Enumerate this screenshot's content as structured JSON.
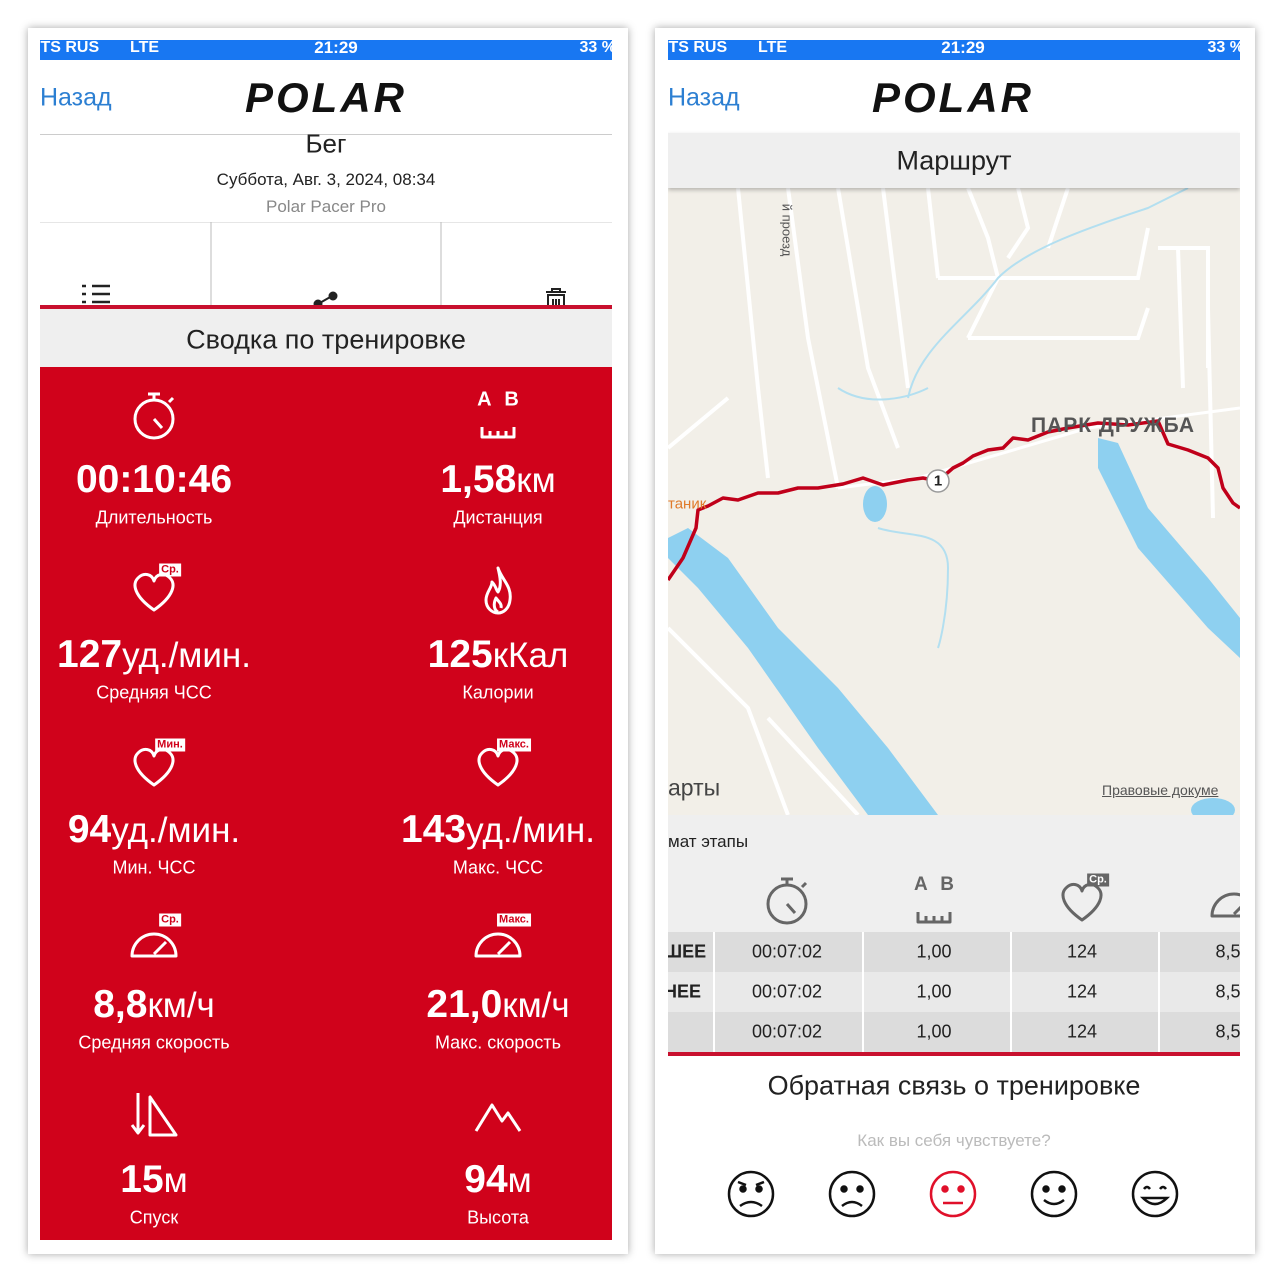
{
  "status": {
    "carrier": "ITS RUS",
    "network": "LTE",
    "time": "21:29",
    "battery": "33 %"
  },
  "nav": {
    "back": "Назад",
    "logo": "POLAR"
  },
  "workout": {
    "sport": "Бег",
    "date": "Суббота, Авг. 3, 2024, 08:34",
    "device": "Polar Pacer Pro"
  },
  "summary": {
    "title": "Сводка по тренировке",
    "metrics": [
      {
        "value": "00:10:46",
        "label": "Длительность"
      },
      {
        "icon_text": "A B",
        "value": "1,58",
        "unit": "км",
        "label": "Дистанция"
      },
      {
        "badge": "Ср.",
        "value": "127",
        "unit": "уд./мин.",
        "label": "Средняя ЧСС"
      },
      {
        "value": "125",
        "unit": "кКал",
        "label": "Калории"
      },
      {
        "badge": "Мин.",
        "value": "94",
        "unit": "уд./мин.",
        "label": "Мин. ЧСС"
      },
      {
        "badge": "Макс.",
        "value": "143",
        "unit": "уд./мин.",
        "label": "Макс. ЧСС"
      },
      {
        "badge": "Ср.",
        "value": "8,8",
        "unit": "км/ч",
        "label": "Средняя скорость"
      },
      {
        "badge": "Макс.",
        "value": "21,0",
        "unit": "км/ч",
        "label": "Макс. скорость"
      },
      {
        "value": "15",
        "unit": "м",
        "label": "Спуск"
      },
      {
        "value": "94",
        "unit": "м",
        "label": "Высота"
      }
    ]
  },
  "route": {
    "title": "Маршрут",
    "map_labels": {
      "park": "ПАРК ДРУЖБА",
      "street": "й проезд",
      "poi": "таник",
      "district": "арты",
      "legal": "Правовые докуме",
      "marker": "1"
    }
  },
  "laps": {
    "title": "мат этапы",
    "header": {
      "distance_icon": "A B",
      "hr_badge": "Ср."
    },
    "rows": [
      {
        "label": "ШЕЕ",
        "cells": [
          "00:07:02",
          "1,00",
          "124",
          "8,5"
        ]
      },
      {
        "label": "НЕЕ",
        "cells": [
          "00:07:02",
          "1,00",
          "124",
          "8,5"
        ]
      },
      {
        "cells": [
          "00:07:02",
          "1,00",
          "124",
          "8,5"
        ]
      }
    ]
  },
  "feedback": {
    "title": "Обратная связь о тренировке",
    "question": "Как вы себя чувствуете?"
  }
}
